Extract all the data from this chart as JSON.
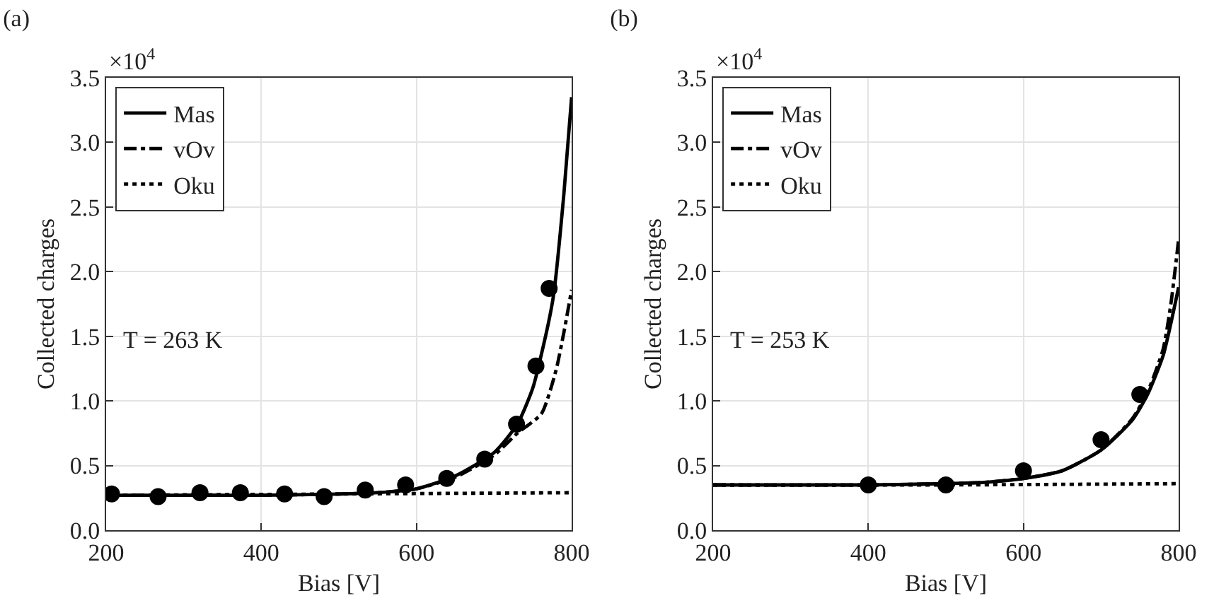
{
  "chart_data": [
    {
      "type": "line",
      "title": "(a)",
      "xlabel": "Bias [V]",
      "ylabel": "Collected charges",
      "annotations": [
        "×10$^{4}$",
        "T = 263 K"
      ],
      "xlim": [
        200,
        800
      ],
      "xticks": [
        200,
        400,
        600,
        800
      ],
      "ylim": [
        0,
        3.5
      ],
      "yticks": [
        {
          "value": 0,
          "label": "0.0"
        },
        {
          "value": 0.5,
          "label": "0.5"
        },
        {
          "value": 1,
          "label": "1.0"
        },
        {
          "value": 1.5,
          "label": "1.5"
        },
        {
          "value": 2,
          "label": "2.0"
        },
        {
          "value": 2.5,
          "label": "2.5"
        },
        {
          "value": 3,
          "label": "3.0"
        },
        {
          "value": 3.5,
          "label": "3.5"
        }
      ],
      "grid": true,
      "legend": "top left",
      "series": [
        {
          "name": "Mas",
          "type": "line",
          "color": "#000000",
          "line_style": "solid",
          "marker": "none",
          "x": [
            200,
            300,
            400,
            500,
            550,
            600,
            650,
            700,
            730,
            750,
            770,
            777,
            790,
            800
          ],
          "values": [
            0.27,
            0.27,
            0.27,
            0.28,
            0.29,
            0.32,
            0.42,
            0.6,
            0.82,
            1.1,
            1.6,
            1.83,
            2.6,
            3.35
          ]
        },
        {
          "name": "vOv",
          "type": "line",
          "color": "#000000",
          "line_style": "dashdot",
          "marker": "none",
          "x": [
            200,
            300,
            400,
            500,
            550,
            600,
            650,
            700,
            730,
            761,
            780,
            790,
            800
          ],
          "values": [
            0.27,
            0.27,
            0.27,
            0.28,
            0.29,
            0.32,
            0.41,
            0.58,
            0.75,
            0.9,
            1.24,
            1.53,
            1.86
          ]
        },
        {
          "name": "Oku",
          "type": "line",
          "color": "#000000",
          "line_style": "dotted",
          "marker": "none",
          "x": [
            200,
            500,
            800
          ],
          "values": [
            0.27,
            0.28,
            0.29
          ]
        },
        {
          "type": "scatter",
          "color": "#000000",
          "marker": "circle",
          "x": [
            207,
            267,
            321,
            373,
            430,
            481,
            534,
            586,
            639,
            688,
            729,
            754,
            771
          ],
          "values": [
            0.28,
            0.26,
            0.29,
            0.29,
            0.28,
            0.26,
            0.31,
            0.35,
            0.4,
            0.55,
            0.82,
            1.27,
            1.87
          ]
        }
      ]
    },
    {
      "type": "line",
      "title": "(b)",
      "xlabel": "Bias [V]",
      "ylabel": "Collected charges",
      "annotations": [
        "×10$^{4}$",
        "T = 253 K"
      ],
      "xlim": [
        200,
        800
      ],
      "xticks": [
        200,
        400,
        600,
        800
      ],
      "ylim": [
        0,
        3.5
      ],
      "yticks": [
        {
          "value": 0,
          "label": "0.0"
        },
        {
          "value": 0.5,
          "label": "0.5"
        },
        {
          "value": 1,
          "label": "1.0"
        },
        {
          "value": 1.5,
          "label": "1.5"
        },
        {
          "value": 2,
          "label": "2.0"
        },
        {
          "value": 2.5,
          "label": "2.5"
        },
        {
          "value": 3,
          "label": "3.0"
        },
        {
          "value": 3.5,
          "label": "3.5"
        }
      ],
      "grid": true,
      "legend": "top left",
      "series": [
        {
          "name": "Mas",
          "type": "line",
          "color": "#000000",
          "line_style": "solid",
          "marker": "none",
          "x": [
            200,
            400,
            500,
            550,
            600,
            650,
            700,
            740,
            760,
            780,
            790,
            800
          ],
          "values": [
            0.35,
            0.35,
            0.36,
            0.37,
            0.4,
            0.46,
            0.62,
            0.85,
            1.05,
            1.35,
            1.6,
            1.88
          ]
        },
        {
          "name": "vOv",
          "type": "line",
          "color": "#000000",
          "line_style": "dashdot",
          "marker": "none",
          "x": [
            200,
            400,
            500,
            550,
            600,
            650,
            700,
            740,
            760,
            780,
            790,
            800
          ],
          "values": [
            0.35,
            0.35,
            0.36,
            0.37,
            0.4,
            0.46,
            0.62,
            0.86,
            1.07,
            1.4,
            1.75,
            2.25
          ]
        },
        {
          "name": "Oku",
          "type": "line",
          "color": "#000000",
          "line_style": "dotted",
          "marker": "none",
          "x": [
            200,
            500,
            800
          ],
          "values": [
            0.35,
            0.35,
            0.36
          ]
        },
        {
          "type": "scatter",
          "color": "#000000",
          "marker": "circle",
          "x": [
            400,
            500,
            600,
            700,
            750
          ],
          "values": [
            0.35,
            0.35,
            0.46,
            0.7,
            1.05
          ]
        }
      ]
    }
  ]
}
